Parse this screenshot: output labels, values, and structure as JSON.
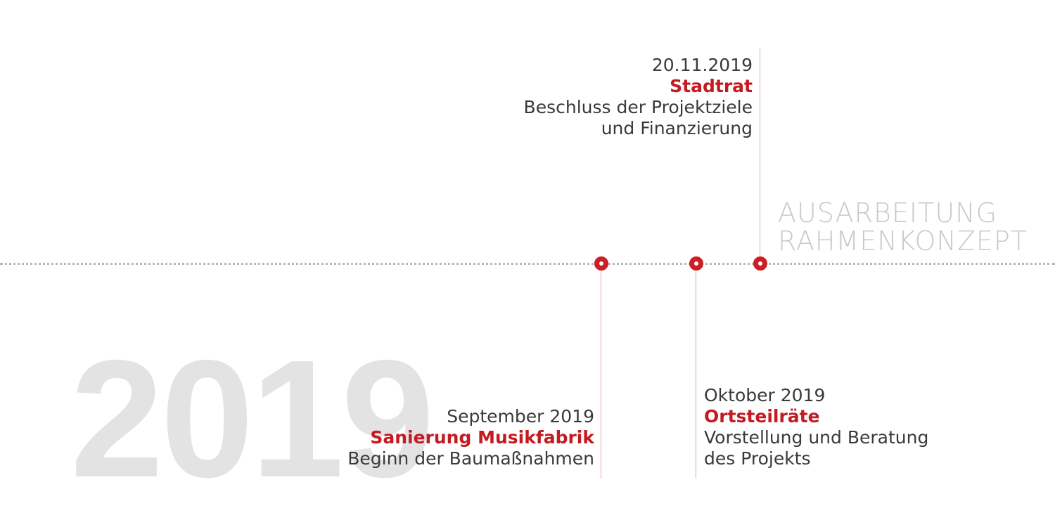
{
  "year": "2019",
  "phase": {
    "line1": "AUSARBEITUNG",
    "line2": "RAHMENKONZEPT"
  },
  "events": [
    {
      "date": "September 2019",
      "title": "Sanierung Musikfabrik",
      "desc_lines": [
        "Beginn der Baumaßnahmen"
      ]
    },
    {
      "date": "Oktober 2019",
      "title": "Ortsteilräte",
      "desc_lines": [
        "Vorstellung und Beratung",
        "des Projekts"
      ]
    },
    {
      "date": "20.11.2019",
      "title": "Stadtrat",
      "desc_lines": [
        "Beschluss der Projektziele",
        "und Finanzierung"
      ]
    }
  ],
  "colors": {
    "accent": "#c41a21",
    "connector": "#e2a8a8",
    "watermark": "#e3e3e3",
    "phase": "#c9c9c9",
    "timeline": "#b8b8b8"
  }
}
